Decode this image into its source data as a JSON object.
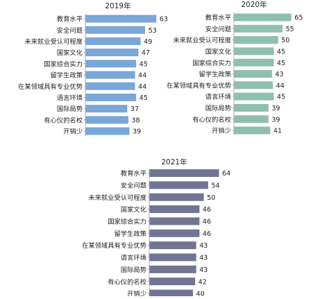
{
  "chart_data": [
    {
      "type": "bar",
      "orientation": "horizontal",
      "title": "2019年",
      "categories": [
        "教育水平",
        "安全问题",
        "未来就业受认可程度",
        "国家文化",
        "国家综合实力",
        "留学生政策",
        "在某领域具有专业优势",
        "语言环境",
        "国际局势",
        "有心仪的名校",
        "开销少"
      ],
      "values": [
        63,
        53,
        49,
        47,
        45,
        44,
        44,
        45,
        37,
        38,
        39
      ],
      "xlim": [
        0,
        70
      ],
      "color": "#7aa6d8",
      "grid": false,
      "legend": "none"
    },
    {
      "type": "bar",
      "orientation": "horizontal",
      "title": "2020年",
      "categories": [
        "教育水平",
        "安全问题",
        "未来就业受认可程度",
        "国家文化",
        "国家综合实力",
        "留学生政策",
        "在某领域具有专业优势",
        "语言环境",
        "国际局势",
        "有心仪的名校",
        "开销少"
      ],
      "values": [
        65,
        55,
        50,
        45,
        45,
        43,
        44,
        45,
        39,
        39,
        41
      ],
      "xlim": [
        0,
        70
      ],
      "color": "#8fbfad",
      "grid": false,
      "legend": "none"
    },
    {
      "type": "bar",
      "orientation": "horizontal",
      "title": "2021年",
      "categories": [
        "教育水平",
        "安全问题",
        "未来就业受认可程度",
        "国家文化",
        "国家综合实力",
        "留学生政策",
        "在某领域具有专业优势",
        "语言环境",
        "国际局势",
        "有心仪的名校",
        "开销少"
      ],
      "values": [
        64,
        54,
        50,
        46,
        46,
        46,
        43,
        43,
        43,
        42,
        40
      ],
      "xlim": [
        0,
        70
      ],
      "color": "#727493",
      "grid": false,
      "legend": "none"
    }
  ]
}
